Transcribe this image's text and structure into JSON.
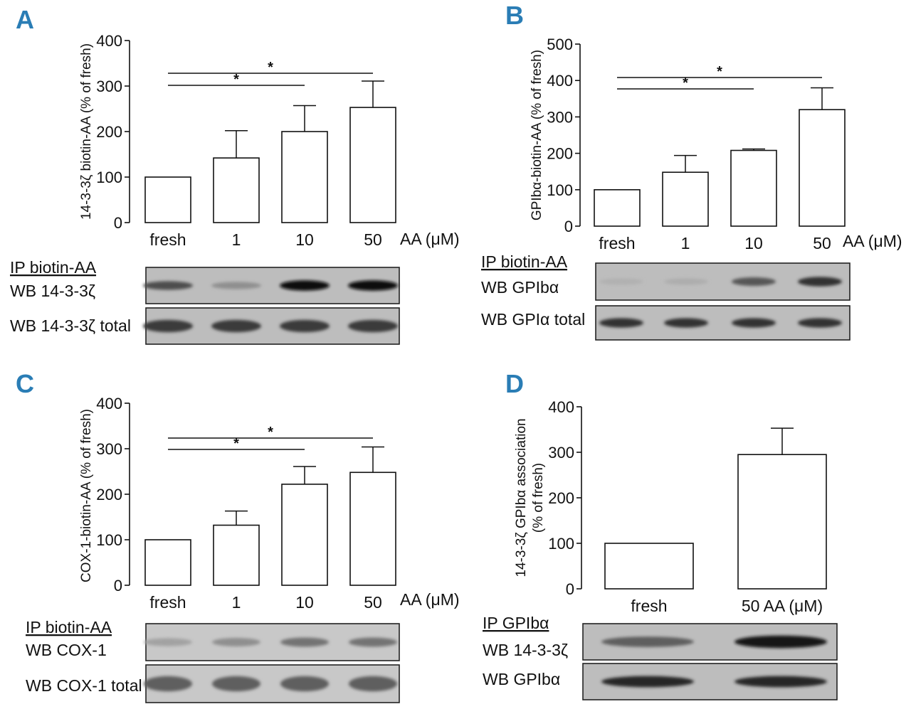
{
  "colors": {
    "panel_letter": "#2a7db5",
    "ink": "#111111",
    "blot_frame": "#222222"
  },
  "chart_data": [
    {
      "panel": "A",
      "type": "bar",
      "ylabel": "14-3-3ζ biotin-AA (% of fresh)",
      "categories": [
        "fresh",
        "1",
        "10",
        "50"
      ],
      "xunit": "AA (μM)",
      "values": [
        100,
        142,
        200,
        253
      ],
      "errors": [
        0,
        60,
        57,
        58
      ],
      "ylim": [
        0,
        400
      ],
      "yticks": [
        0,
        100,
        200,
        300,
        400
      ],
      "significance": [
        {
          "from": "fresh",
          "to": "10",
          "label": "*"
        },
        {
          "from": "fresh",
          "to": "50",
          "label": "*"
        }
      ]
    },
    {
      "panel": "B",
      "type": "bar",
      "ylabel": "GPIbα-biotin-AA (% of fresh)",
      "categories": [
        "fresh",
        "1",
        "10",
        "50"
      ],
      "xunit": "AA (μM)",
      "values": [
        100,
        148,
        208,
        320
      ],
      "errors": [
        0,
        46,
        4,
        60
      ],
      "ylim": [
        0,
        500
      ],
      "yticks": [
        0,
        100,
        200,
        300,
        400,
        500
      ],
      "significance": [
        {
          "from": "fresh",
          "to": "10",
          "label": "*"
        },
        {
          "from": "fresh",
          "to": "50",
          "label": "*"
        }
      ]
    },
    {
      "panel": "C",
      "type": "bar",
      "ylabel": "COX-1-biotin-AA (% of fresh)",
      "categories": [
        "fresh",
        "1",
        "10",
        "50"
      ],
      "xunit": "AA (μM)",
      "values": [
        100,
        132,
        222,
        248
      ],
      "errors": [
        0,
        31,
        39,
        56
      ],
      "ylim": [
        0,
        400
      ],
      "yticks": [
        0,
        100,
        200,
        300,
        400
      ],
      "significance": [
        {
          "from": "fresh",
          "to": "10",
          "label": "*"
        },
        {
          "from": "fresh",
          "to": "50",
          "label": "*"
        }
      ]
    },
    {
      "panel": "D",
      "type": "bar",
      "ylabel": "14-3-3ζ GPIbα association",
      "ylabel2": "(% of fresh)",
      "categories": [
        "fresh",
        "50 AA (μM)"
      ],
      "xunit": "",
      "values": [
        100,
        295
      ],
      "errors": [
        0,
        58
      ],
      "ylim": [
        0,
        400
      ],
      "yticks": [
        0,
        100,
        200,
        300,
        400
      ],
      "significance": []
    }
  ],
  "blots": [
    {
      "panel": "A",
      "ip_label": "IP biotin-AA",
      "rows": [
        {
          "label": "WB 14-3-3ζ",
          "intensities": [
            0.65,
            0.3,
            1.0,
            1.0
          ]
        },
        {
          "label": "WB 14-3-3ζ total",
          "intensities": [
            0.75,
            0.75,
            0.75,
            0.75
          ]
        }
      ]
    },
    {
      "panel": "B",
      "ip_label": "IP biotin-AA",
      "rows": [
        {
          "label": "WB GPIbα",
          "intensities": [
            0.12,
            0.14,
            0.6,
            0.8
          ]
        },
        {
          "label": "WB GPIα total",
          "intensities": [
            0.8,
            0.8,
            0.8,
            0.8
          ]
        }
      ]
    },
    {
      "panel": "C",
      "ip_label": "IP biotin-AA",
      "rows": [
        {
          "label": "WB COX-1",
          "intensities": [
            0.2,
            0.3,
            0.45,
            0.45
          ]
        },
        {
          "label": "WB COX-1 total",
          "intensities": [
            0.55,
            0.55,
            0.55,
            0.55
          ]
        }
      ]
    },
    {
      "panel": "D",
      "ip_label": "IP GPIbα",
      "rows": [
        {
          "label": "WB 14-3-3ζ",
          "intensities": [
            0.55,
            0.95
          ]
        },
        {
          "label": "WB GPIbα",
          "intensities": [
            0.85,
            0.85
          ]
        }
      ]
    }
  ]
}
